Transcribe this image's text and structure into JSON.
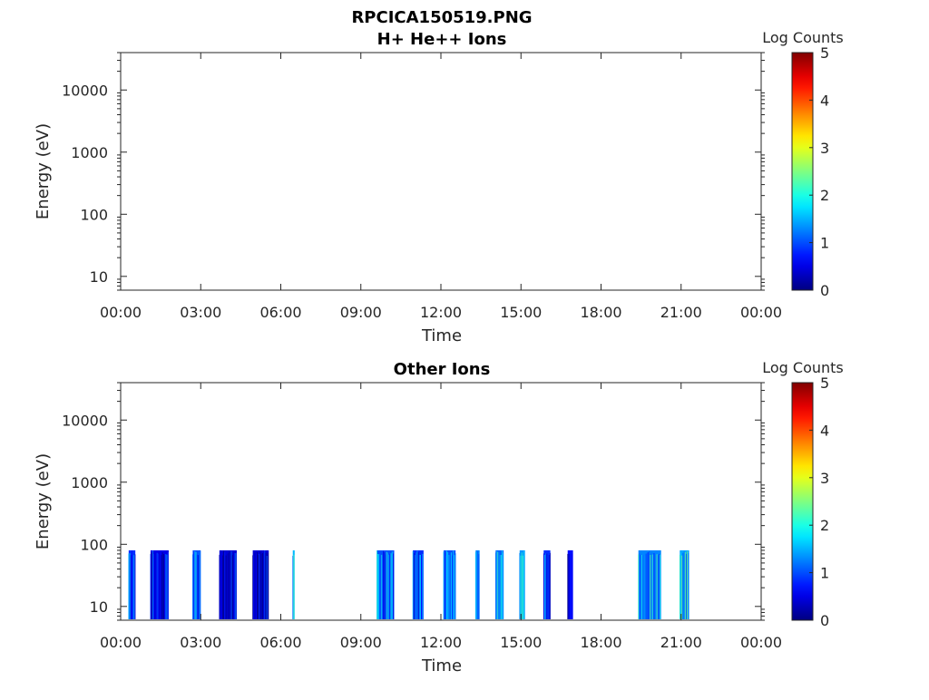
{
  "figure": {
    "title": "RPCICA150519.PNG"
  },
  "chart_data": [
    {
      "type": "heatmap",
      "title": "H+ He++ Ions",
      "xlabel": "Time",
      "ylabel": "Energy (eV)",
      "x_tick_labels": [
        "00:00",
        "03:00",
        "06:00",
        "09:00",
        "12:00",
        "15:00",
        "18:00",
        "21:00",
        "00:00"
      ],
      "y_tick_labels": [
        "10",
        "100",
        "1000",
        "10000"
      ],
      "y_scale": "log",
      "ylim": [
        6,
        40000
      ],
      "xlim_hours": [
        0,
        24
      ],
      "colorbar": {
        "label": "Log Counts",
        "ticks": [
          "0",
          "1",
          "2",
          "3",
          "4",
          "5"
        ],
        "range": [
          0,
          5
        ],
        "colormap": "jet"
      },
      "bursts": []
    },
    {
      "type": "heatmap",
      "title": "Other Ions",
      "xlabel": "Time",
      "ylabel": "Energy (eV)",
      "x_tick_labels": [
        "00:00",
        "03:00",
        "06:00",
        "09:00",
        "12:00",
        "15:00",
        "18:00",
        "21:00",
        "00:00"
      ],
      "y_tick_labels": [
        "10",
        "100",
        "1000",
        "10000"
      ],
      "y_scale": "log",
      "ylim": [
        6,
        40000
      ],
      "xlim_hours": [
        0,
        24
      ],
      "colorbar": {
        "label": "Log Counts",
        "ticks": [
          "0",
          "1",
          "2",
          "3",
          "4",
          "5"
        ],
        "range": [
          0,
          5
        ],
        "colormap": "jet"
      },
      "energy_range_eV": [
        6,
        80
      ],
      "bursts": [
        {
          "start_h": 0.3,
          "end_h": 0.55,
          "log_counts": 1.0
        },
        {
          "start_h": 1.12,
          "end_h": 1.8,
          "log_counts": 0.6
        },
        {
          "start_h": 2.7,
          "end_h": 3.0,
          "log_counts": 1.2
        },
        {
          "start_h": 3.7,
          "end_h": 4.35,
          "log_counts": 0.5
        },
        {
          "start_h": 4.95,
          "end_h": 5.55,
          "log_counts": 0.5
        },
        {
          "start_h": 6.45,
          "end_h": 6.52,
          "log_counts": 1.8
        },
        {
          "start_h": 9.6,
          "end_h": 10.25,
          "log_counts": 1.2
        },
        {
          "start_h": 10.95,
          "end_h": 11.35,
          "log_counts": 1.0
        },
        {
          "start_h": 12.1,
          "end_h": 12.55,
          "log_counts": 1.2
        },
        {
          "start_h": 13.3,
          "end_h": 13.45,
          "log_counts": 1.5
        },
        {
          "start_h": 14.05,
          "end_h": 14.35,
          "log_counts": 1.3
        },
        {
          "start_h": 14.95,
          "end_h": 15.15,
          "log_counts": 1.6
        },
        {
          "start_h": 15.85,
          "end_h": 16.1,
          "log_counts": 1.0
        },
        {
          "start_h": 16.75,
          "end_h": 16.95,
          "log_counts": 0.8
        },
        {
          "start_h": 19.4,
          "end_h": 20.25,
          "log_counts": 1.5
        },
        {
          "start_h": 20.95,
          "end_h": 21.3,
          "log_counts": 1.7
        }
      ]
    }
  ]
}
